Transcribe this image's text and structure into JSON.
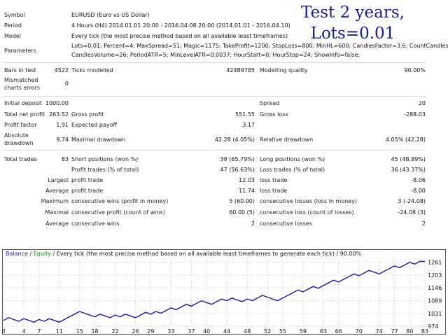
{
  "overlay": {
    "line1": "Test 2 years,",
    "line2": "Lots=0.01"
  },
  "report": {
    "symbol_label": "Symbol",
    "symbol_value": "EURUSD (Euro vs US Dollar)",
    "period_label": "Period",
    "period_value": "4 Hours (H4) 2014.01.01 20:00 - 2016.04.08 20:00 (2014.01.01 - 2016.04.10)",
    "model_label": "Model",
    "model_value": "Every tick (the most precise method based on all available least timeframes)",
    "parameters_label": "Parameters",
    "parameters_line1": "Lots=0.01; Percent=4; MaxSpread=51; Magic=1175; TakeProfit=1200; StopLoss=800; MinHL=600; CandlesFactor=3.6; CountCandles=6;",
    "parameters_line2": "CandlesVolume=26; PeriodATR=5; MinLevelATR=0.0037; HourStart=0; HourStop=24; ShowInfo=false;",
    "bars_label": "Bars in test",
    "bars_value": "4522",
    "ticks_label": "Ticks modelled",
    "ticks_value": "42489785",
    "quality_label": "Modelling quality",
    "quality_value": "90.00%",
    "mismatched_label_1": "Mismatched",
    "mismatched_label_2": "charts errors",
    "mismatched_value": "0",
    "deposit_label": "Initial deposit",
    "deposit_value": "1000.00",
    "spread_label": "Spread",
    "spread_value": "20",
    "net_label": "Total net profit",
    "net_value": "263.52",
    "gross_profit_label": "Gross profit",
    "gross_profit_value": "551.55",
    "gross_loss_label": "Gross loss",
    "gross_loss_value": "-288.03",
    "pf_label": "Profit factor",
    "pf_value": "1.91",
    "payoff_label": "Expected payoff",
    "payoff_value": "3.17",
    "abs_dd_label_1": "Absolute",
    "abs_dd_label_2": "drawdown",
    "abs_dd_value": "9.74",
    "max_dd_label": "Maximal drawdown",
    "max_dd_value": "42.28 (4.05%)",
    "rel_dd_label": "Relative drawdown",
    "rel_dd_value": "4.05% (42.28)",
    "trades_label": "Total trades",
    "trades_value": "83",
    "short_label": "Short positions (won %)",
    "short_value": "38 (65.79%)",
    "long_label": "Long positions (won %)",
    "long_value": "45 (48.89%)",
    "profit_trades_label": "Profit trades (% of total)",
    "profit_trades_value": "47 (56.63%)",
    "loss_trades_label": "Loss trades (% of total)",
    "loss_trades_value": "36 (43.37%)",
    "largest_label": "Largest",
    "largest_profit_label": "profit trade",
    "largest_profit_value": "12.03",
    "largest_loss_label": "loss trade",
    "largest_loss_value": "-8.06",
    "average_label": "Average",
    "average_profit_label": "profit trade",
    "average_profit_value": "11.74",
    "average_loss_label": "loss trade",
    "average_loss_value": "-8.00",
    "maximum_label": "Maximum",
    "max_wins_label": "consecutive wins (profit in money)",
    "max_wins_value": "5 (60.00)",
    "max_losses_label": "consecutive losses (loss in money)",
    "max_losses_value": "3 (-24.08)",
    "maximal_label": "Maximal",
    "maximal_profit_label": "consecutive profit (count of wins)",
    "maximal_profit_value": "60.00 (5)",
    "maximal_loss_label": "consecutive loss (count of losses)",
    "maximal_loss_value": "-24.08 (3)",
    "avg2_label": "Average",
    "avg_wins_label": "consecutive wins",
    "avg_wins_value": "2",
    "avg_losses_label": "consecutive losses",
    "avg_losses_value": "2"
  },
  "legend": {
    "balance": "Balance",
    "sep1": " / ",
    "equity": "Equity",
    "rest": " / Every tick (the most precise method based on all available least timeframes to generate each tick) / 90.00%"
  },
  "colors": {
    "balance": "#1a1aa0",
    "equity": "#0a8a0a",
    "overlay": "#1a1a9c"
  },
  "chart_data": {
    "type": "line",
    "title": "",
    "xlabel": "",
    "ylabel": "",
    "x_ticks": [
      0,
      4,
      7,
      11,
      15,
      18,
      22,
      26,
      29,
      33,
      37,
      40,
      44,
      48,
      52,
      55,
      59,
      63,
      66,
      70,
      74,
      77,
      80,
      83
    ],
    "y_ticks": [
      974,
      1031,
      1089,
      1146,
      1203,
      1261
    ],
    "xlim": [
      0,
      83
    ],
    "ylim": [
      974,
      1275
    ],
    "grid": true,
    "series": [
      {
        "name": "Balance",
        "x": [
          0,
          1,
          2,
          3,
          4,
          5,
          6,
          7,
          8,
          9,
          10,
          11,
          12,
          13,
          14,
          15,
          16,
          17,
          18,
          19,
          20,
          21,
          22,
          23,
          24,
          25,
          26,
          27,
          28,
          29,
          30,
          31,
          32,
          33,
          34,
          35,
          36,
          37,
          38,
          39,
          40,
          41,
          42,
          43,
          44,
          45,
          46,
          47,
          48,
          49,
          50,
          51,
          52,
          53,
          54,
          55,
          56,
          57,
          58,
          59,
          60,
          61,
          62,
          63,
          64,
          65,
          66,
          67,
          68,
          69,
          70,
          71,
          72,
          73,
          74,
          75,
          76,
          77,
          78,
          79,
          80,
          81,
          82,
          83
        ],
        "values": [
          1000,
          1012,
          1004,
          996,
          1008,
          1000,
          992,
          1004,
          996,
          1008,
          1000,
          992,
          1004,
          1016,
          1028,
          1040,
          1032,
          1024,
          1016,
          1028,
          1020,
          1012,
          1024,
          1016,
          1028,
          1020,
          1012,
          1024,
          1036,
          1028,
          1040,
          1032,
          1044,
          1056,
          1048,
          1060,
          1072,
          1064,
          1076,
          1088,
          1080,
          1072,
          1084,
          1096,
          1088,
          1100,
          1092,
          1084,
          1096,
          1088,
          1100,
          1112,
          1104,
          1096,
          1088,
          1100,
          1112,
          1124,
          1136,
          1128,
          1140,
          1152,
          1144,
          1156,
          1168,
          1180,
          1172,
          1184,
          1196,
          1208,
          1200,
          1212,
          1224,
          1216,
          1208,
          1220,
          1232,
          1244,
          1236,
          1248,
          1260,
          1252,
          1264,
          1264
        ]
      }
    ]
  }
}
